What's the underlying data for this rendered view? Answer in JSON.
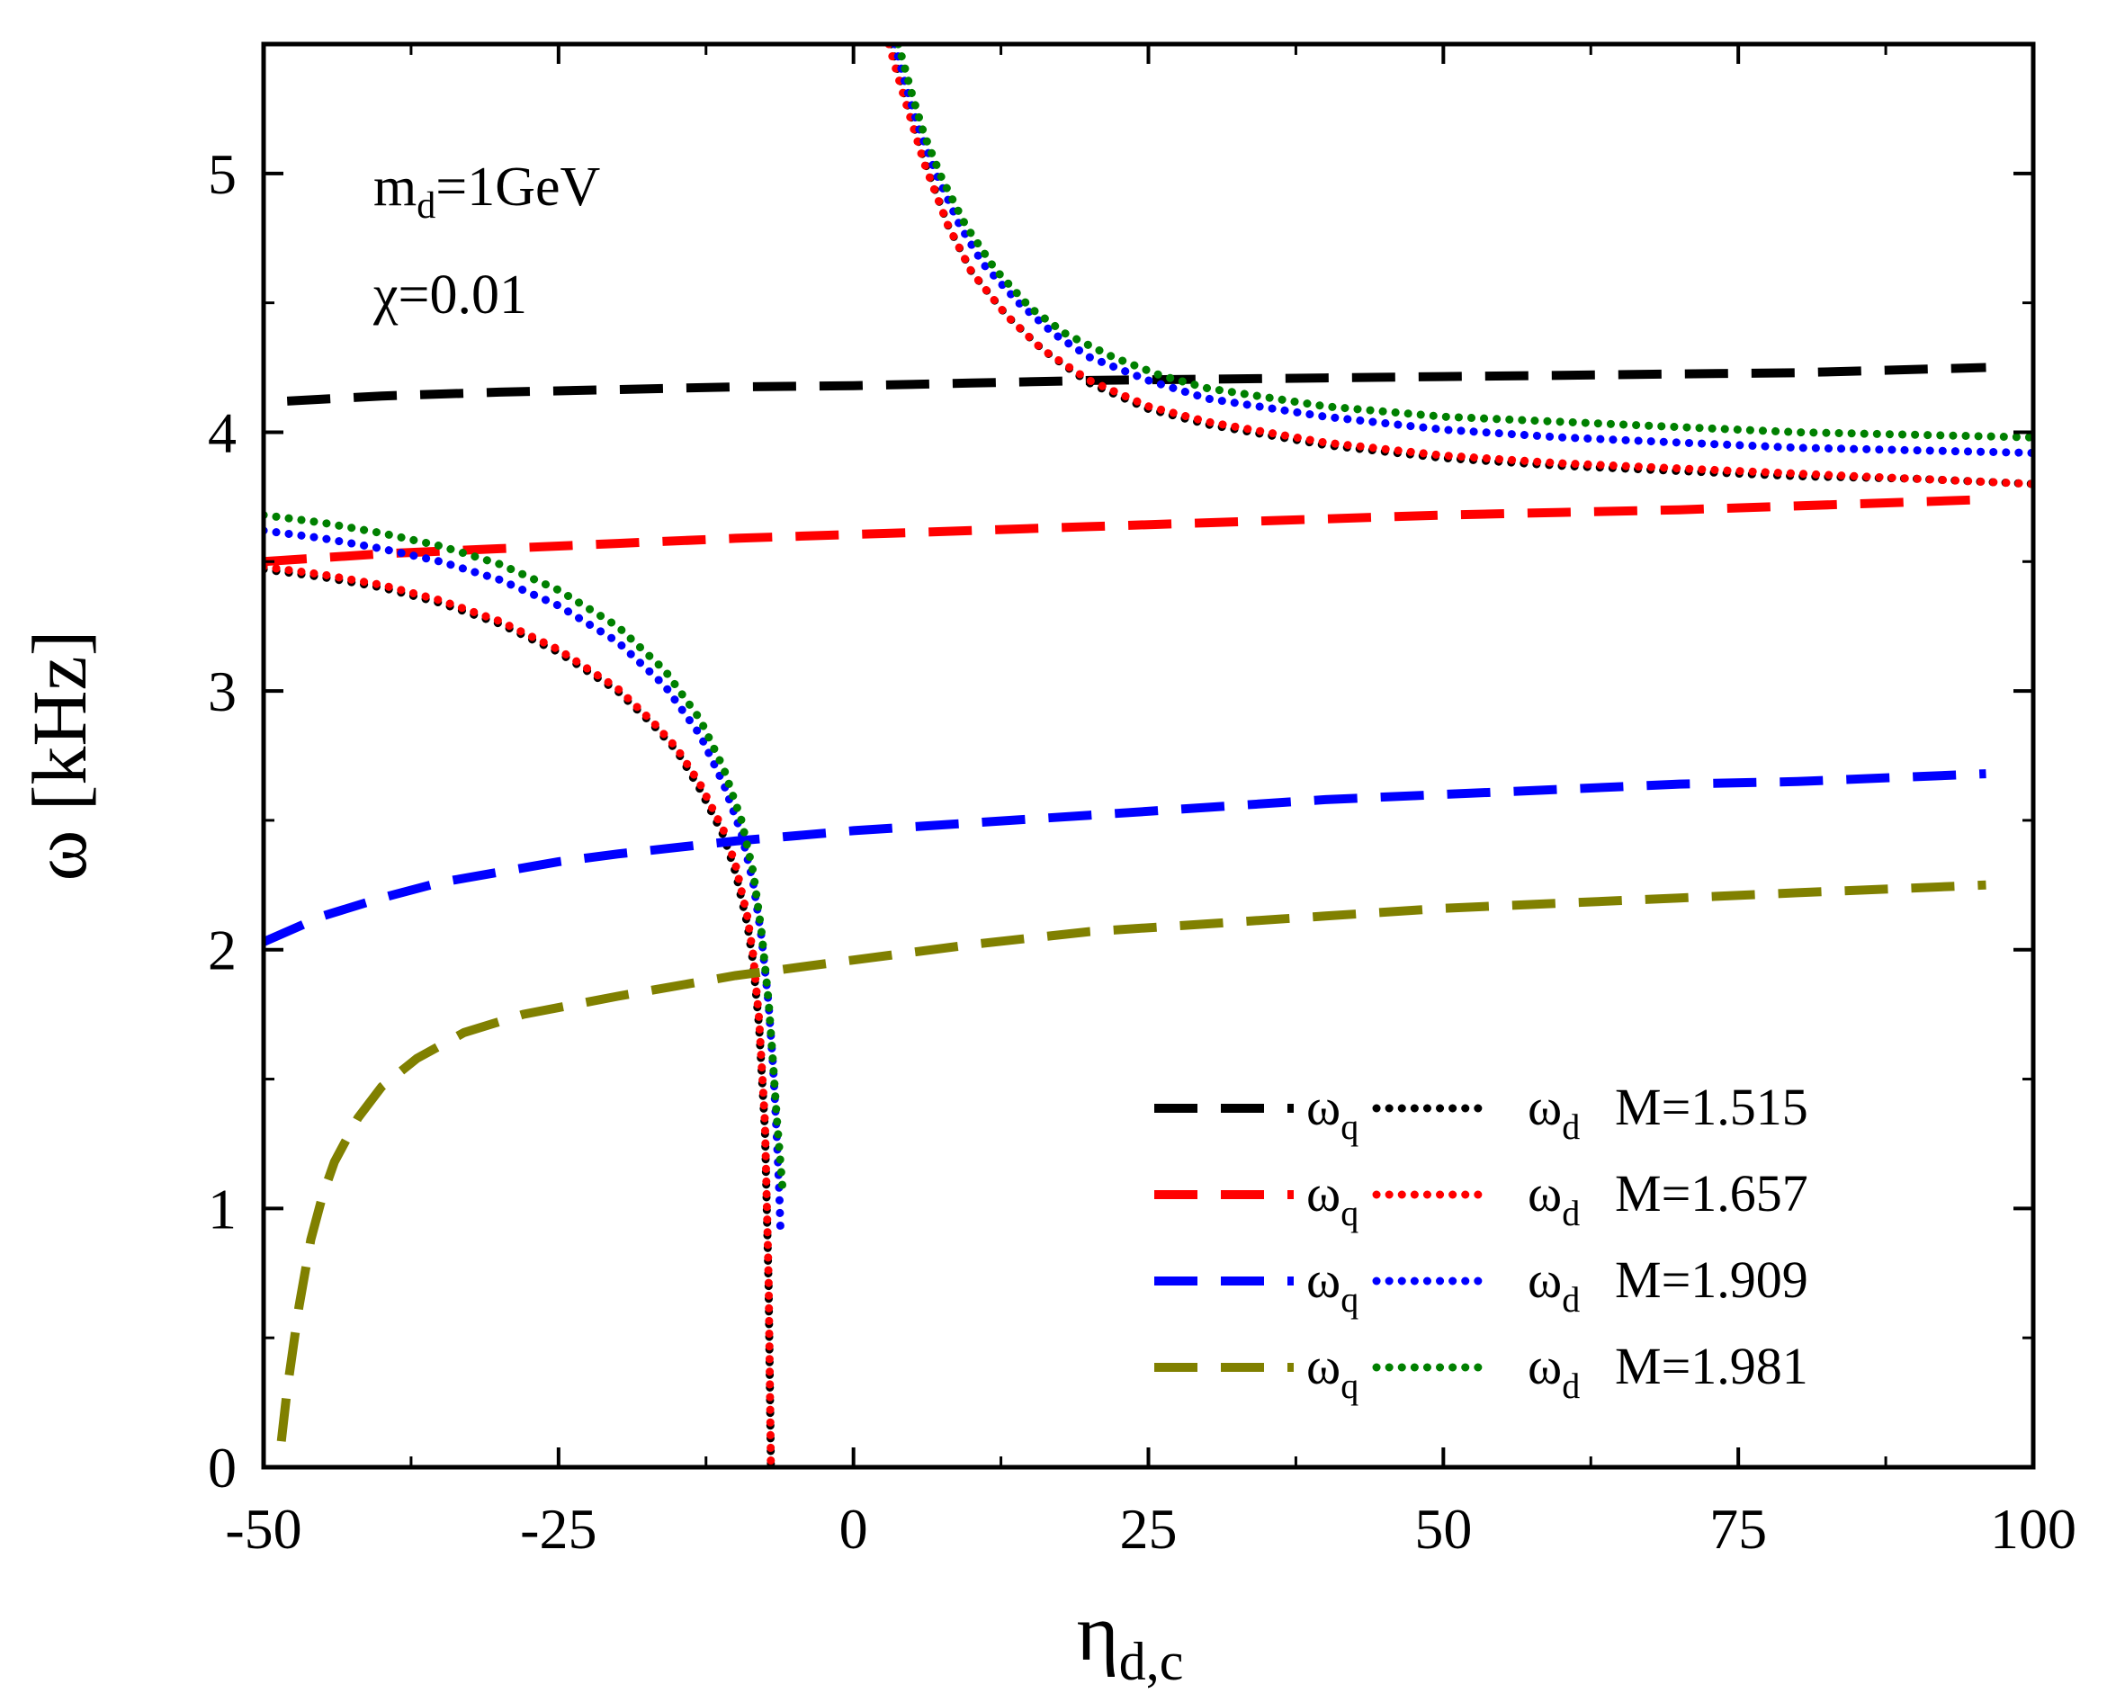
{
  "chart_data": {
    "type": "line",
    "xlabel": "η",
    "xlabel_sub": "d,c",
    "ylabel": "ω [kHz]",
    "xlim": [
      -50,
      100
    ],
    "ylim": [
      0,
      5.5
    ],
    "x_ticks": [
      "-50",
      "-25",
      "0",
      "25",
      "50",
      "75",
      "100"
    ],
    "y_ticks": [
      "0",
      "1",
      "2",
      "3",
      "4",
      "5"
    ],
    "annotations": [
      {
        "main": "m",
        "sub": "d",
        "rest": "=1GeV"
      },
      {
        "main": "χ=0.01",
        "sub": "",
        "rest": ""
      }
    ],
    "legend": {
      "location": "lower-right",
      "q_label": "ω",
      "q_sub": "q",
      "d_label": "ω",
      "d_sub": "d"
    },
    "series": [
      {
        "name": "M=1.515",
        "color": "#000000",
        "omega_q": {
          "x": [
            -48,
            -40,
            -30,
            -20,
            -10,
            0,
            10,
            20,
            30,
            40,
            50,
            60,
            70,
            80,
            96
          ],
          "y": [
            4.12,
            4.14,
            4.155,
            4.165,
            4.175,
            4.18,
            4.19,
            4.2,
            4.205,
            4.21,
            4.215,
            4.22,
            4.225,
            4.23,
            4.25
          ]
        },
        "omega_d_lower": {
          "x": [
            -50,
            -45,
            -40,
            -35,
            -30,
            -25,
            -20,
            -17,
            -15,
            -13,
            -11,
            -10,
            -9,
            -8.5,
            -8,
            -7.5,
            -7.2,
            -7
          ],
          "y": [
            3.47,
            3.44,
            3.4,
            3.34,
            3.26,
            3.15,
            3.0,
            2.87,
            2.77,
            2.62,
            2.44,
            2.3,
            2.1,
            1.95,
            1.7,
            1.3,
            0.7,
            0.0
          ]
        },
        "omega_d_upper": {
          "x": [
            3.2,
            4,
            5,
            6,
            8,
            10,
            13,
            16,
            20,
            25,
            30,
            40,
            50,
            60,
            70,
            80,
            90,
            100
          ],
          "y": [
            5.5,
            5.35,
            5.2,
            5.05,
            4.8,
            4.62,
            4.45,
            4.32,
            4.19,
            4.09,
            4.03,
            3.95,
            3.9,
            3.87,
            3.85,
            3.83,
            3.82,
            3.8
          ]
        }
      },
      {
        "name": "M=1.657",
        "color": "#ff0000",
        "omega_q": {
          "x": [
            -50,
            -40,
            -30,
            -20,
            -10,
            0,
            10,
            20,
            30,
            40,
            50,
            60,
            70,
            80,
            96
          ],
          "y": [
            3.5,
            3.53,
            3.55,
            3.57,
            3.59,
            3.605,
            3.62,
            3.635,
            3.65,
            3.665,
            3.68,
            3.69,
            3.7,
            3.715,
            3.74
          ]
        },
        "omega_d_lower": {
          "x": [
            -50,
            -45,
            -40,
            -35,
            -30,
            -25,
            -20,
            -17,
            -15,
            -13,
            -11,
            -10,
            -9,
            -8.5,
            -8,
            -7.5,
            -7.2,
            -7
          ],
          "y": [
            3.48,
            3.45,
            3.41,
            3.35,
            3.27,
            3.16,
            3.01,
            2.88,
            2.78,
            2.64,
            2.46,
            2.33,
            2.13,
            1.98,
            1.73,
            1.33,
            0.73,
            0.0
          ]
        },
        "omega_d_upper": {
          "x": [
            3,
            4,
            5,
            6,
            8,
            10,
            13,
            16,
            20,
            25,
            30,
            40,
            50,
            60,
            70,
            80,
            90,
            100
          ],
          "y": [
            5.5,
            5.34,
            5.19,
            5.04,
            4.8,
            4.62,
            4.45,
            4.32,
            4.2,
            4.1,
            4.04,
            3.96,
            3.91,
            3.88,
            3.86,
            3.84,
            3.82,
            3.8
          ]
        }
      },
      {
        "name": "M=1.909",
        "color": "#0000ff",
        "omega_q": {
          "x": [
            -50,
            -45,
            -40,
            -35,
            -30,
            -25,
            -20,
            -10,
            0,
            10,
            20,
            30,
            40,
            50,
            60,
            70,
            80,
            96
          ],
          "y": [
            2.03,
            2.13,
            2.2,
            2.26,
            2.3,
            2.34,
            2.37,
            2.42,
            2.46,
            2.49,
            2.52,
            2.55,
            2.58,
            2.6,
            2.62,
            2.64,
            2.65,
            2.68
          ]
        },
        "omega_d_lower": {
          "x": [
            -50,
            -45,
            -40,
            -35,
            -30,
            -25,
            -20,
            -16,
            -13,
            -11,
            -9.5,
            -8.5,
            -7.8,
            -7.2,
            -6.8,
            -6.5,
            -6.3,
            -6.2
          ],
          "y": [
            3.62,
            3.59,
            3.55,
            3.5,
            3.43,
            3.33,
            3.19,
            3.02,
            2.83,
            2.64,
            2.45,
            2.26,
            2.05,
            1.79,
            1.54,
            1.28,
            1.07,
            0.93
          ]
        },
        "omega_d_upper": {
          "x": [
            3.5,
            4.5,
            5.5,
            7,
            9,
            11,
            14,
            17,
            20,
            25,
            30,
            40,
            50,
            60,
            70,
            80,
            90,
            100
          ],
          "y": [
            5.5,
            5.33,
            5.18,
            5.0,
            4.8,
            4.65,
            4.5,
            4.38,
            4.29,
            4.2,
            4.13,
            4.06,
            4.01,
            3.98,
            3.96,
            3.94,
            3.93,
            3.92
          ]
        }
      },
      {
        "name": "M=1.981",
        "color": "#808000",
        "marker_color": "#008000",
        "omega_q": {
          "x": [
            -48.5,
            -48,
            -47,
            -46,
            -45,
            -44,
            -42,
            -40,
            -37,
            -33,
            -28,
            -20,
            -10,
            0,
            10,
            20,
            30,
            40,
            50,
            60,
            70,
            80,
            96
          ],
          "y": [
            0.1,
            0.3,
            0.62,
            0.88,
            1.05,
            1.18,
            1.35,
            1.47,
            1.58,
            1.68,
            1.75,
            1.82,
            1.9,
            1.96,
            2.02,
            2.07,
            2.1,
            2.13,
            2.16,
            2.18,
            2.2,
            2.22,
            2.25
          ]
        },
        "omega_d_lower": {
          "x": [
            -50,
            -45,
            -40,
            -35,
            -30,
            -25,
            -20,
            -16,
            -13,
            -11,
            -9.5,
            -8.5,
            -7.8,
            -7.2,
            -6.8,
            -6.5,
            -6.2,
            -6.0
          ],
          "y": [
            3.68,
            3.65,
            3.61,
            3.56,
            3.49,
            3.39,
            3.25,
            3.08,
            2.89,
            2.7,
            2.5,
            2.3,
            2.07,
            1.8,
            1.55,
            1.35,
            1.18,
            1.07
          ]
        },
        "omega_d_upper": {
          "x": [
            3.8,
            5,
            6,
            7.5,
            9.5,
            12,
            15,
            18,
            22,
            26,
            30,
            40,
            50,
            60,
            70,
            80,
            90,
            100
          ],
          "y": [
            5.5,
            5.3,
            5.15,
            4.98,
            4.8,
            4.63,
            4.48,
            4.38,
            4.29,
            4.22,
            4.17,
            4.1,
            4.06,
            4.04,
            4.02,
            4.0,
            3.99,
            3.98
          ]
        }
      }
    ]
  }
}
